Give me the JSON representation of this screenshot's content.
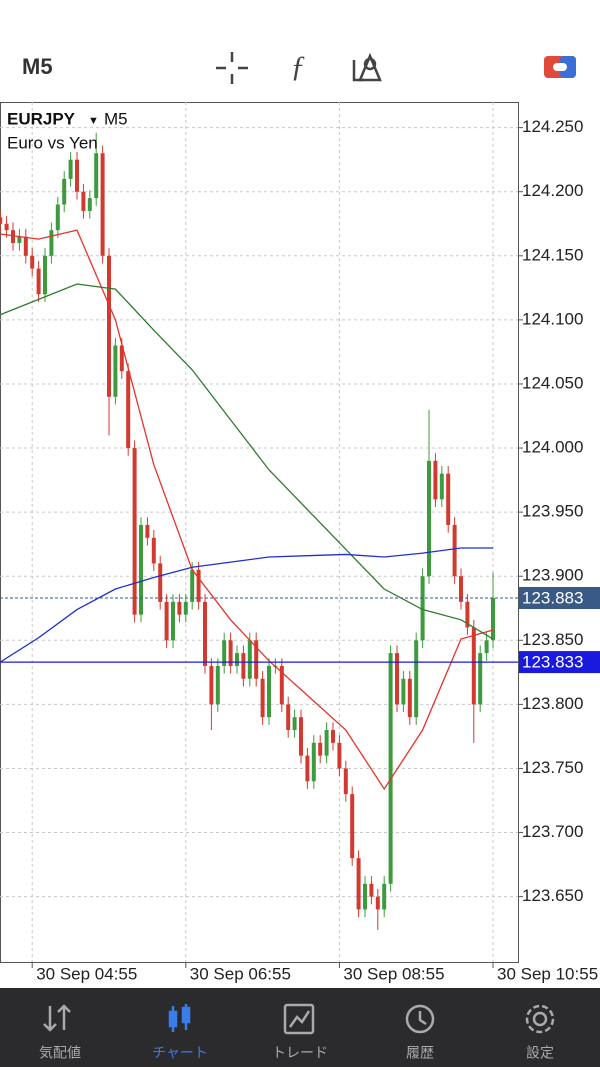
{
  "header": {
    "timeframe": "M5"
  },
  "chart_data": {
    "type": "candlestick",
    "symbol": "EURJPY",
    "dropdown": "▼",
    "timeframe": "M5",
    "description": "Euro vs Yen",
    "colors": {
      "up": "#3d9b3d",
      "down": "#d33a2f"
    },
    "candles": [
      [
        124.18,
        124.186,
        124.169,
        124.175
      ],
      [
        124.175,
        124.181,
        124.164,
        124.17
      ],
      [
        124.17,
        124.176,
        124.154,
        124.16
      ],
      [
        124.16,
        124.171,
        124.154,
        124.165
      ],
      [
        124.165,
        124.171,
        124.144,
        124.15
      ],
      [
        124.15,
        124.156,
        124.134,
        124.14
      ],
      [
        124.14,
        124.146,
        124.114,
        124.12
      ],
      [
        124.12,
        124.156,
        124.114,
        124.15
      ],
      [
        124.15,
        124.176,
        124.144,
        124.17
      ],
      [
        124.17,
        124.196,
        124.164,
        124.19
      ],
      [
        124.19,
        124.216,
        124.184,
        124.21
      ],
      [
        124.21,
        124.231,
        124.204,
        124.225
      ],
      [
        124.225,
        124.231,
        124.194,
        124.2
      ],
      [
        124.2,
        124.206,
        124.179,
        124.185
      ],
      [
        124.185,
        124.201,
        124.179,
        124.195
      ],
      [
        124.195,
        124.246,
        124.189,
        124.23
      ],
      [
        124.23,
        124.236,
        124.144,
        124.15
      ],
      [
        124.15,
        124.156,
        124.01,
        124.04
      ],
      [
        124.04,
        124.086,
        124.034,
        124.08
      ],
      [
        124.08,
        124.086,
        124.054,
        124.06
      ],
      [
        124.06,
        124.066,
        123.994,
        124.0
      ],
      [
        124.0,
        124.006,
        123.864,
        123.87
      ],
      [
        123.87,
        123.946,
        123.864,
        123.94
      ],
      [
        123.94,
        123.946,
        123.924,
        123.93
      ],
      [
        123.93,
        123.936,
        123.904,
        123.91
      ],
      [
        123.91,
        123.916,
        123.874,
        123.88
      ],
      [
        123.88,
        123.886,
        123.844,
        123.85
      ],
      [
        123.85,
        123.886,
        123.844,
        123.88
      ],
      [
        123.88,
        123.886,
        123.864,
        123.87
      ],
      [
        123.87,
        123.886,
        123.864,
        123.88
      ],
      [
        123.88,
        123.911,
        123.874,
        123.905
      ],
      [
        123.905,
        123.911,
        123.874,
        123.88
      ],
      [
        123.88,
        123.886,
        123.824,
        123.83
      ],
      [
        123.83,
        123.836,
        123.78,
        123.8
      ],
      [
        123.8,
        123.836,
        123.794,
        123.83
      ],
      [
        123.83,
        123.856,
        123.824,
        123.85
      ],
      [
        123.85,
        123.856,
        123.824,
        123.83
      ],
      [
        123.83,
        123.846,
        123.824,
        123.84
      ],
      [
        123.84,
        123.846,
        123.814,
        123.82
      ],
      [
        123.82,
        123.856,
        123.814,
        123.85
      ],
      [
        123.85,
        123.856,
        123.814,
        123.82
      ],
      [
        123.82,
        123.826,
        123.784,
        123.79
      ],
      [
        123.79,
        123.836,
        123.784,
        123.83
      ],
      [
        123.83,
        123.836,
        123.824,
        123.83
      ],
      [
        123.83,
        123.836,
        123.794,
        123.8
      ],
      [
        123.8,
        123.806,
        123.774,
        123.78
      ],
      [
        123.78,
        123.796,
        123.774,
        123.79
      ],
      [
        123.79,
        123.796,
        123.754,
        123.76
      ],
      [
        123.76,
        123.766,
        123.734,
        123.74
      ],
      [
        123.74,
        123.776,
        123.734,
        123.77
      ],
      [
        123.77,
        123.776,
        123.754,
        123.76
      ],
      [
        123.76,
        123.786,
        123.754,
        123.78
      ],
      [
        123.78,
        123.786,
        123.764,
        123.77
      ],
      [
        123.77,
        123.776,
        123.744,
        123.75
      ],
      [
        123.75,
        123.756,
        123.724,
        123.73
      ],
      [
        123.73,
        123.736,
        123.674,
        123.68
      ],
      [
        123.68,
        123.686,
        123.634,
        123.64
      ],
      [
        123.64,
        123.666,
        123.634,
        123.66
      ],
      [
        123.66,
        123.666,
        123.644,
        123.65
      ],
      [
        123.65,
        123.656,
        123.624,
        123.64
      ],
      [
        123.64,
        123.666,
        123.634,
        123.66
      ],
      [
        123.66,
        123.846,
        123.654,
        123.84
      ],
      [
        123.84,
        123.846,
        123.794,
        123.8
      ],
      [
        123.8,
        123.826,
        123.794,
        123.82
      ],
      [
        123.82,
        123.826,
        123.784,
        123.79
      ],
      [
        123.79,
        123.856,
        123.784,
        123.85
      ],
      [
        123.85,
        123.906,
        123.844,
        123.9
      ],
      [
        123.9,
        124.03,
        123.894,
        123.99
      ],
      [
        123.99,
        123.996,
        123.954,
        123.96
      ],
      [
        123.96,
        123.986,
        123.954,
        123.98
      ],
      [
        123.98,
        123.986,
        123.934,
        123.94
      ],
      [
        123.94,
        123.946,
        123.894,
        123.9
      ],
      [
        123.9,
        123.906,
        123.874,
        123.88
      ],
      [
        123.88,
        123.886,
        123.854,
        123.86
      ],
      [
        123.86,
        123.866,
        123.77,
        123.8
      ],
      [
        123.8,
        123.846,
        123.794,
        123.84
      ],
      [
        123.84,
        123.856,
        123.834,
        123.85
      ],
      [
        123.85,
        123.903,
        123.844,
        123.883
      ]
    ],
    "series": [
      {
        "color": "#e5332a",
        "x": [
          0,
          6,
          12,
          18,
          24,
          30,
          36,
          42,
          48,
          54,
          60,
          66,
          72,
          77
        ],
        "values": [
          124.167,
          124.163,
          124.17,
          124.1,
          123.987,
          123.905,
          123.866,
          123.834,
          123.807,
          123.78,
          123.734,
          123.78,
          123.851,
          123.858
        ]
      },
      {
        "color": "#2f7a2f",
        "x": [
          0,
          6,
          12,
          18,
          24,
          30,
          36,
          42,
          48,
          54,
          60,
          66,
          72,
          77
        ],
        "values": [
          124.104,
          124.116,
          124.128,
          124.124,
          124.092,
          124.061,
          124.022,
          123.983,
          123.952,
          123.921,
          123.89,
          123.874,
          123.866,
          123.851
        ]
      },
      {
        "color": "#1f2fd0",
        "x": [
          0,
          6,
          12,
          18,
          24,
          30,
          36,
          42,
          48,
          54,
          60,
          66,
          72,
          77
        ],
        "values": [
          123.833,
          123.852,
          123.874,
          123.89,
          123.899,
          123.907,
          123.911,
          123.915,
          123.916,
          123.917,
          123.915,
          123.918,
          123.922,
          123.922
        ]
      }
    ],
    "price_lines": [
      {
        "value": 123.883,
        "style": "dashed",
        "color": "#3a5a86"
      },
      {
        "value": 123.833,
        "style": "solid",
        "color": "#1a1adf"
      }
    ],
    "ylim": [
      123.599,
      124.27
    ],
    "yticks": [
      {
        "value": 124.25,
        "label": "124.250"
      },
      {
        "value": 124.2,
        "label": "124.200"
      },
      {
        "value": 124.15,
        "label": "124.150"
      },
      {
        "value": 124.1,
        "label": "124.100"
      },
      {
        "value": 124.05,
        "label": "124.050"
      },
      {
        "value": 124,
        "label": "124.000"
      },
      {
        "value": 123.95,
        "label": "123.950"
      },
      {
        "value": 123.9,
        "label": "123.900"
      },
      {
        "value": 123.85,
        "label": "123.850"
      },
      {
        "value": 123.8,
        "label": "123.800"
      },
      {
        "value": 123.75,
        "label": "123.750"
      },
      {
        "value": 123.7,
        "label": "123.700"
      },
      {
        "value": 123.65,
        "label": "123.650"
      }
    ],
    "xticks": [
      {
        "value": 5,
        "label": "30 Sep 04:55"
      },
      {
        "value": 29,
        "label": "30 Sep 06:55"
      },
      {
        "value": 53,
        "label": "30 Sep 08:55"
      },
      {
        "value": 77,
        "label": "30 Sep 10:55"
      }
    ],
    "grid": true
  },
  "nav": {
    "items": [
      "気配値",
      "チャート",
      "トレード",
      "履歴",
      "設定"
    ],
    "active": 1
  }
}
